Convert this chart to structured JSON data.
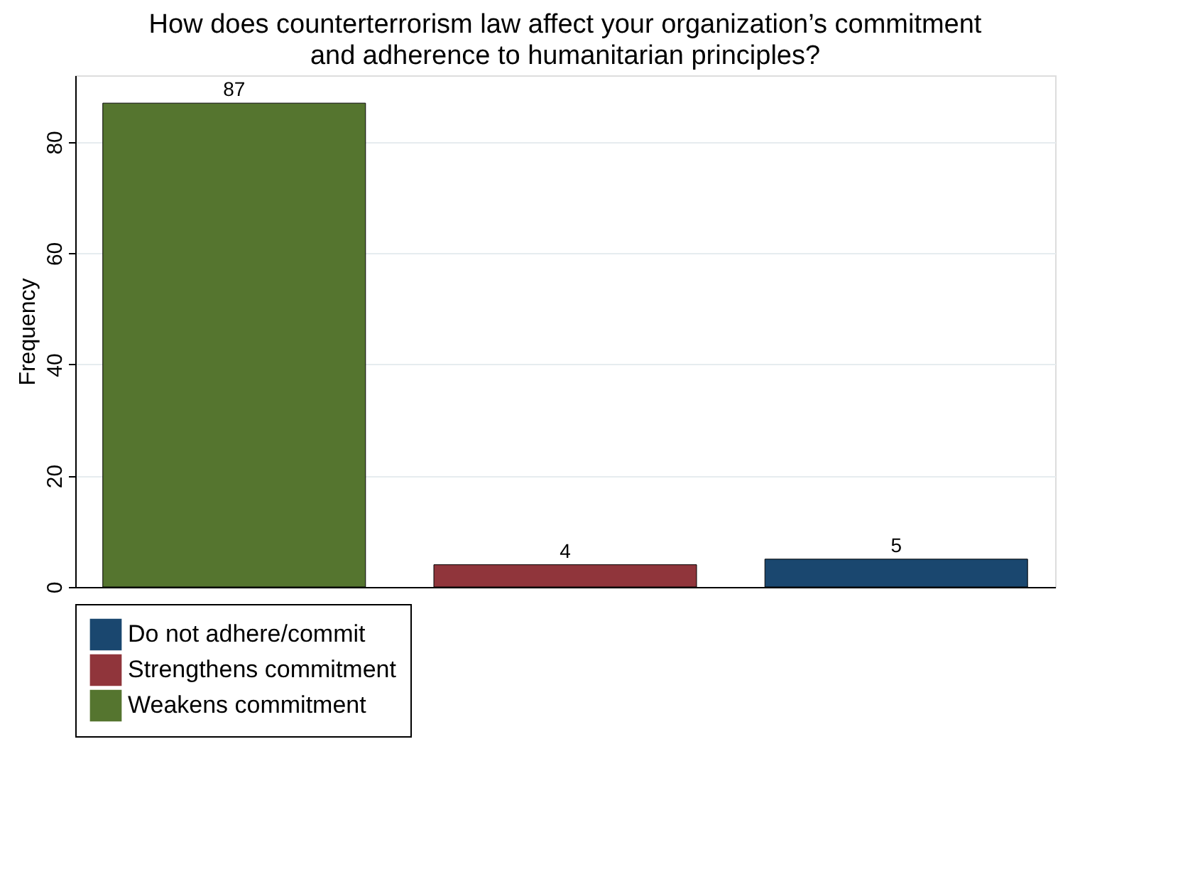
{
  "chart_data": {
    "type": "bar",
    "title": "How does counterterrorism law affect your organization’s commitment and adherence to humanitarian principles?",
    "ylabel": "Frequency",
    "categories": [
      null,
      null,
      null
    ],
    "series": [
      {
        "name": "Do not adhere/commit",
        "color": "#1a476f",
        "values": [
          null,
          null,
          5
        ]
      },
      {
        "name": "Strengthens commitment",
        "color": "#90353b",
        "values": [
          null,
          4,
          null
        ]
      },
      {
        "name": "Weakens commitment",
        "color": "#55752f",
        "values": [
          87,
          null,
          null
        ]
      }
    ],
    "ylim": [
      0,
      92
    ],
    "yticks": [
      0,
      20,
      40,
      60,
      80
    ],
    "grid": "y",
    "legend": "bottom",
    "data_labels": true
  }
}
